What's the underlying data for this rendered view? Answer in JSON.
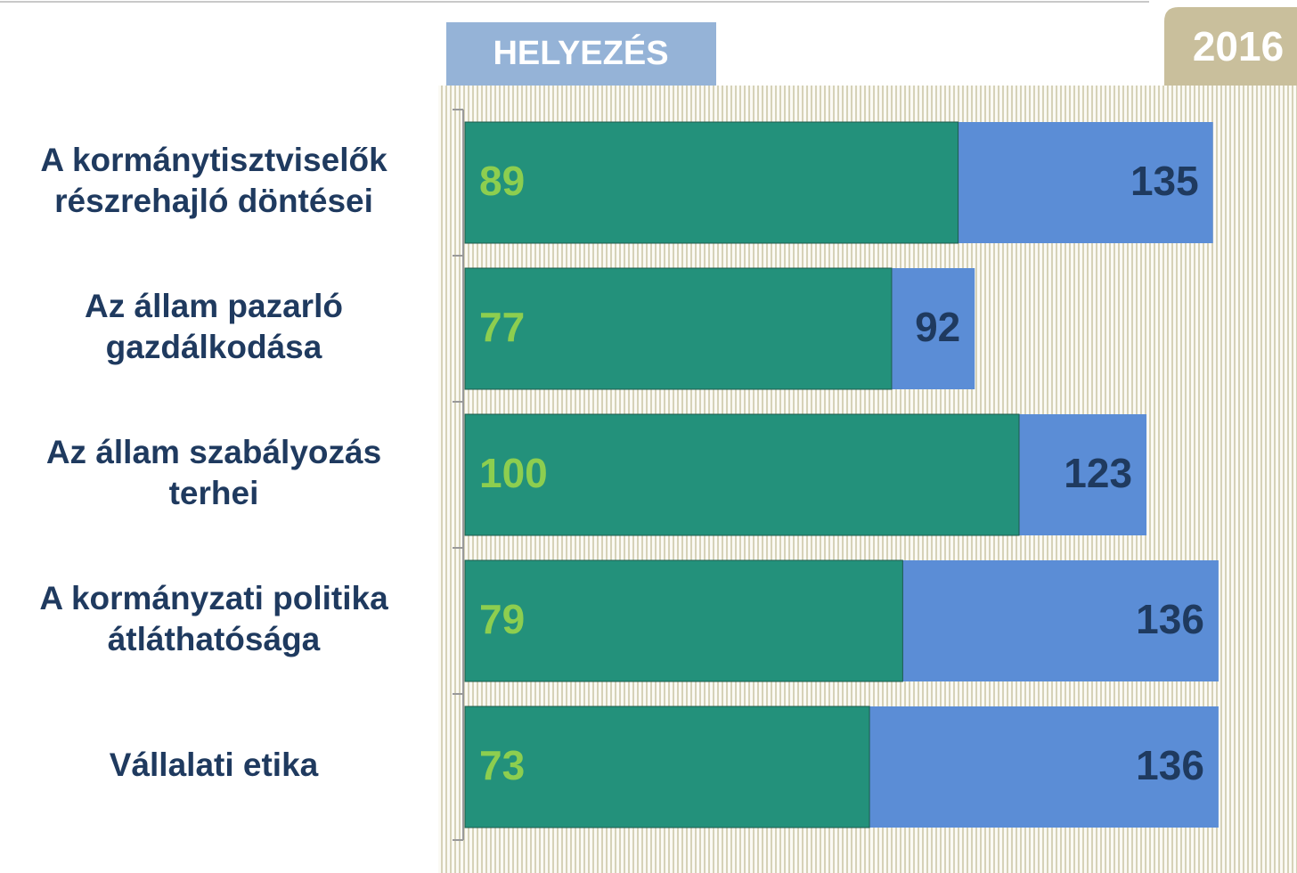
{
  "chart_data": {
    "type": "bar",
    "orientation": "horizontal",
    "overlap": true,
    "header": "HELYEZÉS",
    "year": "2016",
    "categories": [
      "A kormánytisztviselők\nrészrehajló döntései",
      "Az állam pazarló\ngazdálkodása",
      "Az állam szabályozás\nterhei",
      "A kormányzati politika\nátláthatósága",
      "Vállalati etika"
    ],
    "series": [
      {
        "color": "#5b8dd6",
        "label_color": "#1f3a5f",
        "values": [
          135,
          92,
          123,
          136,
          136
        ]
      },
      {
        "color": "#23917b",
        "label_color": "#8dce4f",
        "values": [
          89,
          77,
          100,
          79,
          73
        ]
      }
    ],
    "xlim": [
      0,
      150
    ]
  }
}
